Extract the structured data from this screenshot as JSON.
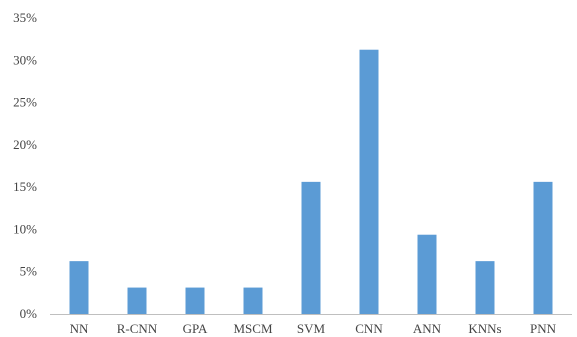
{
  "chart_data": {
    "type": "bar",
    "title": "",
    "xlabel": "",
    "ylabel": "",
    "categories": [
      "NN",
      "R-CNN",
      "GPA",
      "MSCM",
      "SVM",
      "CNN",
      "ANN",
      "KNNs",
      "PNN"
    ],
    "values": [
      6.25,
      3.125,
      3.125,
      3.125,
      15.625,
      31.25,
      9.375,
      6.25,
      15.625
    ],
    "value_unit": "%",
    "ylim": [
      0,
      35
    ],
    "yticks": [
      0,
      5,
      10,
      15,
      20,
      25,
      30,
      35
    ],
    "ytick_labels": [
      "0%",
      "5%",
      "10%",
      "15%",
      "20%",
      "25%",
      "30%",
      "35%"
    ],
    "grid": false,
    "legend": "none",
    "colors": {
      "bar": "#5b9bd5",
      "axis": "#bfbfbf",
      "text": "#444444"
    }
  }
}
